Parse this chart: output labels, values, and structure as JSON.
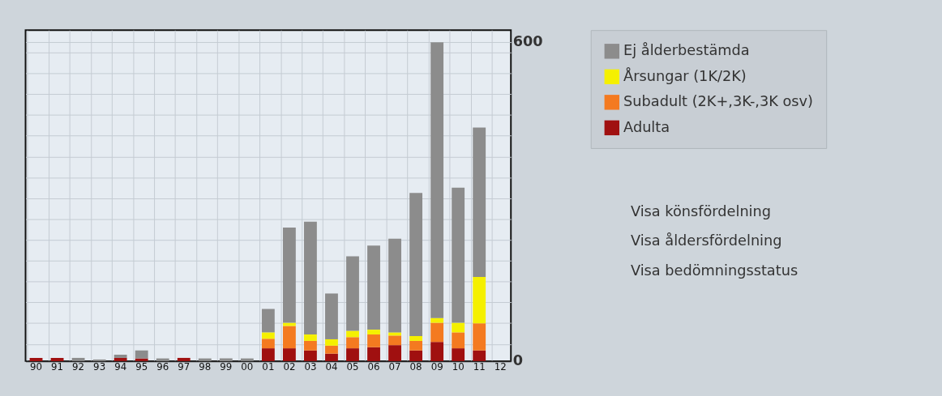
{
  "chart_data": {
    "type": "bar",
    "stacked": true,
    "categories": [
      "90",
      "91",
      "92",
      "93",
      "94",
      "95",
      "96",
      "97",
      "98",
      "99",
      "00",
      "01",
      "02",
      "03",
      "04",
      "05",
      "06",
      "07",
      "08",
      "09",
      "10",
      "11",
      "12"
    ],
    "series": [
      {
        "name": "Adulta",
        "color": "#a01010",
        "values": [
          6,
          6,
          0,
          0,
          6,
          5,
          0,
          6,
          0,
          0,
          0,
          24,
          24,
          20,
          14,
          24,
          26,
          30,
          20,
          36,
          24,
          20,
          0
        ]
      },
      {
        "name": "Subadult (2K+,3K-,3K osv)",
        "color": "#f47a20",
        "values": [
          0,
          0,
          0,
          0,
          0,
          0,
          0,
          0,
          0,
          0,
          0,
          18,
          42,
          18,
          15,
          21,
          24,
          18,
          18,
          36,
          30,
          51,
          0
        ]
      },
      {
        "name": "Årsungar (1K/2K)",
        "color": "#f5f000",
        "values": [
          0,
          0,
          0,
          0,
          0,
          0,
          0,
          0,
          0,
          0,
          0,
          12,
          6,
          12,
          12,
          12,
          9,
          6,
          9,
          9,
          18,
          87,
          0
        ]
      },
      {
        "name": "Ej ålderbestämda",
        "color": "#8c8c8c",
        "values": [
          0,
          0,
          6,
          3,
          6,
          15,
          5,
          0,
          5,
          5,
          5,
          44,
          179,
          212,
          86,
          140,
          158,
          176,
          269,
          518,
          254,
          281,
          0
        ]
      }
    ],
    "ylim": [
      0,
      622
    ],
    "yticks": [
      0,
      {
        "value": 32,
        "label": null
      },
      {
        "value": 72,
        "label": null
      },
      {
        "value": 111,
        "label": null
      },
      {
        "value": 150,
        "label": null
      },
      {
        "value": 189,
        "label": null
      },
      {
        "value": 228,
        "label": null
      },
      {
        "value": 267,
        "label": null
      },
      {
        "value": 306,
        "label": null
      },
      {
        "value": 345,
        "label": null
      },
      {
        "value": 384,
        "label": null
      },
      {
        "value": 424,
        "label": null
      },
      {
        "value": 463,
        "label": null
      },
      {
        "value": 502,
        "label": null
      },
      {
        "value": 541,
        "label": null
      },
      {
        "value": 580,
        "label": null
      },
      600
    ],
    "grid": true,
    "legend": "right",
    "annotations": [
      "Visa könsfördelning",
      "Visa åldersfördelning",
      "Visa bedömningsstatus"
    ]
  }
}
